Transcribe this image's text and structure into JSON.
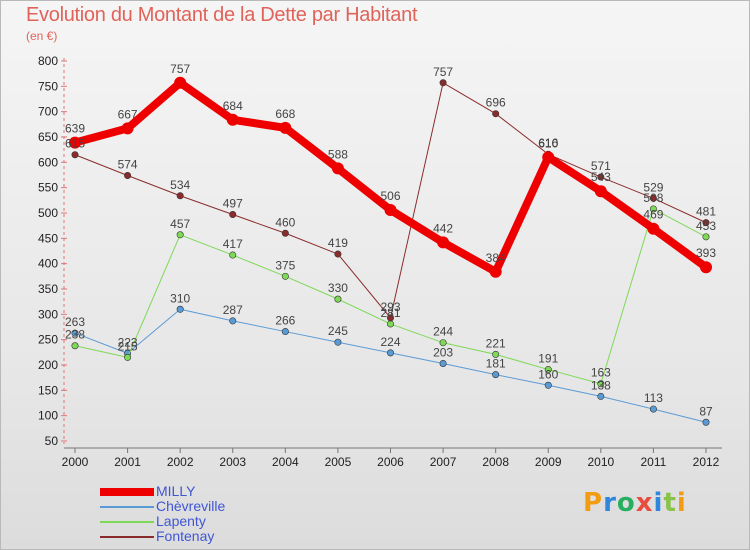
{
  "title": "Evolution du Montant de la Dette par Habitant",
  "subtitle": "(en €)",
  "logo": {
    "text": "Proxiti",
    "colors": [
      "#f39c12",
      "#2e86de",
      "#27ae60",
      "#e74c3c",
      "#2e86de",
      "#8bc34a",
      "#f39c12"
    ]
  },
  "chart_data": {
    "type": "line",
    "x": [
      "2000",
      "2001",
      "2002",
      "2003",
      "2004",
      "2005",
      "2006",
      "2007",
      "2008",
      "2009",
      "2010",
      "2011",
      "2012"
    ],
    "ylim": [
      50,
      800
    ],
    "yticks": [
      50,
      100,
      150,
      200,
      250,
      300,
      350,
      400,
      450,
      500,
      550,
      600,
      650,
      700,
      750,
      800
    ],
    "grid": false,
    "legend_position": "bottom-left",
    "series": [
      {
        "name": "Chèvreville",
        "color": "#5b9bd5",
        "width": 1,
        "values": [
          263,
          223,
          310,
          287,
          266,
          245,
          224,
          203,
          181,
          160,
          138,
          113,
          87
        ],
        "labels": [
          "263",
          "223",
          "310",
          "287",
          "266",
          "245",
          "224",
          "203",
          "181",
          "160",
          "138",
          "113",
          "87"
        ]
      },
      {
        "name": "Lapenty",
        "color": "#7ed957",
        "width": 1,
        "values": [
          238,
          215,
          457,
          417,
          375,
          330,
          281,
          244,
          221,
          191,
          163,
          508,
          453
        ],
        "labels": [
          "238",
          "215",
          "457",
          "417",
          "375",
          "330",
          "281",
          "244",
          "221",
          "191",
          "163",
          "508",
          "453"
        ]
      },
      {
        "name": "Fontenay",
        "color": "#8b2c2c",
        "width": 1,
        "values": [
          615,
          574,
          534,
          497,
          460,
          419,
          293,
          757,
          696,
          616,
          571,
          529,
          481
        ],
        "labels": [
          "615",
          "574",
          "534",
          "497",
          "460",
          "419",
          "293",
          "757",
          "696",
          "616",
          "571",
          "529",
          "481"
        ]
      },
      {
        "name": "MILLY",
        "color": "#ee0000",
        "width": 8,
        "values": [
          639,
          667,
          757,
          684,
          668,
          588,
          506,
          442,
          384,
          610,
          543,
          469,
          393
        ],
        "labels": [
          "639",
          "667",
          "757",
          "684",
          "668",
          "588",
          "506",
          "442",
          "384",
          "610",
          "543",
          "469",
          "393"
        ]
      }
    ],
    "legend": [
      {
        "name": "MILLY",
        "color": "#ee0000",
        "width": 8
      },
      {
        "name": "Chèvreville",
        "color": "#5b9bd5",
        "width": 2
      },
      {
        "name": "Lapenty",
        "color": "#7ed957",
        "width": 2
      },
      {
        "name": "Fontenay",
        "color": "#8b2c2c",
        "width": 2
      }
    ]
  }
}
